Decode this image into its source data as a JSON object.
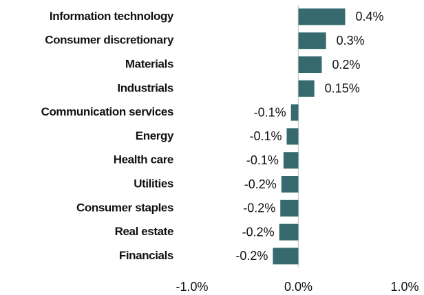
{
  "chart_data": {
    "type": "barh",
    "categories": [
      "Information technology",
      "Consumer discretionary",
      "Materials",
      "Industrials",
      "Communication services",
      "Energy",
      "Health care",
      "Utilities",
      "Consumer staples",
      "Real estate",
      "Financials"
    ],
    "values": [
      0.44,
      0.26,
      0.22,
      0.15,
      -0.07,
      -0.11,
      -0.14,
      -0.16,
      -0.17,
      -0.18,
      -0.24
    ],
    "value_labels": [
      "0.4%",
      "0.3%",
      "0.2%",
      "0.15%",
      "-0.1%",
      "-0.1%",
      "-0.1%",
      "-0.2%",
      "-0.2%",
      "-0.2%",
      "-0.2%"
    ],
    "color": "#366a6f",
    "xlim": [
      -1,
      1
    ],
    "xticks": [
      {
        "value": -1,
        "label": "-1.0%"
      },
      {
        "value": 0,
        "label": "0.0%"
      },
      {
        "value": 1,
        "label": "1.0%"
      }
    ]
  }
}
